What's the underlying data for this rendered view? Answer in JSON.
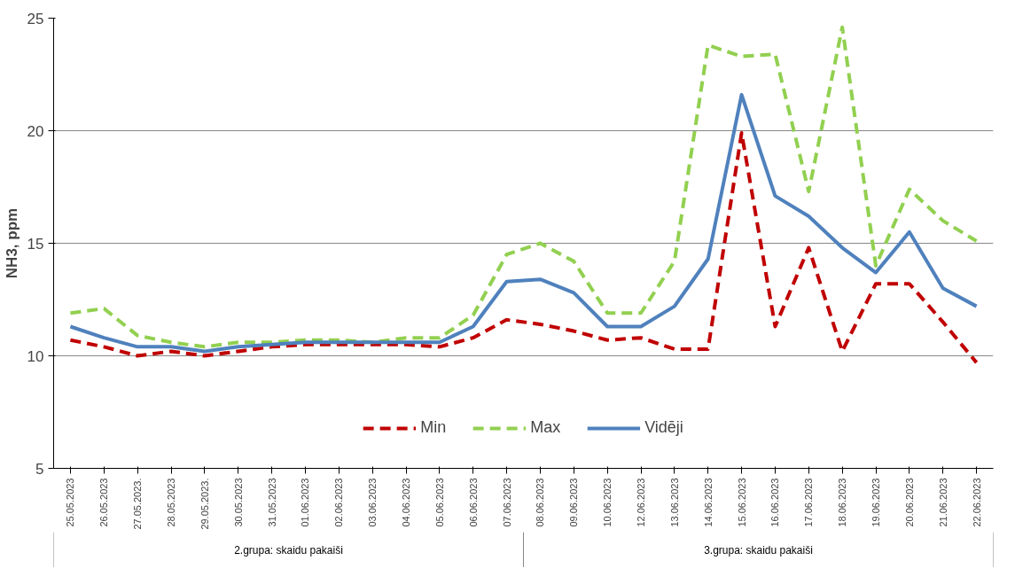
{
  "chart_data": {
    "type": "line",
    "ylabel": "NH3, ppm",
    "categories": [
      "25.05.2023",
      "26.05.2023",
      "27.05.2023.",
      "28.05.2023",
      "29.05.2023.",
      "30.05.2023",
      "31.05.2023",
      "01.06.2023",
      "02.06.2023",
      "03.06.2023",
      "04.06.2023",
      "05.06.2023",
      "06.06.2023",
      "07.06.2023",
      "08.06.2023",
      "09.06.2023",
      "10.06.2023",
      "12.06.2023",
      "13.06.2023",
      "14.06.2023",
      "15.06.2023",
      "16.06.2023",
      "17.06.2023",
      "18.06.2023",
      "19.06.2023",
      "20.06.2023",
      "21.06.2023",
      "22.06.2023"
    ],
    "series": [
      {
        "name": "Min",
        "color": "#c00000",
        "line_style": "dashed",
        "values": [
          10.7,
          10.4,
          10.0,
          10.2,
          10.0,
          10.2,
          10.4,
          10.5,
          10.5,
          10.5,
          10.5,
          10.4,
          10.8,
          11.6,
          11.4,
          11.1,
          10.7,
          10.8,
          10.3,
          10.3,
          19.9,
          11.3,
          14.8,
          10.2,
          13.2,
          13.2,
          11.5,
          9.7
        ]
      },
      {
        "name": "Max",
        "color": "#92d050",
        "line_style": "dashed",
        "values": [
          11.9,
          12.1,
          10.9,
          10.6,
          10.4,
          10.6,
          10.6,
          10.7,
          10.7,
          10.6,
          10.8,
          10.8,
          11.8,
          14.5,
          15.0,
          14.2,
          11.9,
          11.9,
          14.2,
          23.8,
          23.3,
          23.4,
          17.3,
          24.6,
          14.0,
          17.4,
          16.0,
          15.1
        ]
      },
      {
        "name": "Vidēji",
        "color": "#4f81bd",
        "line_style": "solid",
        "values": [
          11.3,
          10.8,
          10.4,
          10.4,
          10.2,
          10.4,
          10.5,
          10.6,
          10.6,
          10.6,
          10.6,
          10.6,
          11.3,
          13.3,
          13.4,
          12.8,
          11.3,
          11.3,
          12.2,
          14.3,
          21.6,
          17.1,
          16.2,
          14.8,
          13.7,
          15.5,
          13.0,
          12.2
        ]
      }
    ],
    "ylim": [
      5,
      25
    ],
    "yticks": [
      5,
      10,
      15,
      20,
      25
    ],
    "grid": "y",
    "legend": "bottom",
    "annotations": [
      "2.grupa: skaidu pakaiši",
      "3.grupa: skaidu pakaiši"
    ]
  }
}
